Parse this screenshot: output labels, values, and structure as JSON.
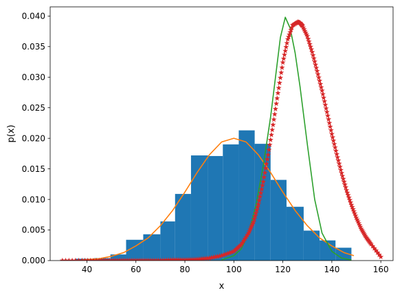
{
  "chart_data": {
    "type": "bar",
    "title": "",
    "xlabel": "x",
    "ylabel": "p(x)",
    "xlim": [
      25,
      165
    ],
    "ylim": [
      0,
      0.0415
    ],
    "x_ticks": [
      40,
      60,
      80,
      100,
      120,
      140,
      160
    ],
    "x_tick_labels": [
      "40",
      "60",
      "80",
      "100",
      "120",
      "140",
      "160"
    ],
    "y_ticks": [
      0,
      0.005,
      0.01,
      0.015,
      0.02,
      0.025,
      0.03,
      0.035,
      0.04
    ],
    "y_tick_labels": [
      "0.000",
      "0.005",
      "0.010",
      "0.015",
      "0.020",
      "0.025",
      "0.030",
      "0.035",
      "0.040"
    ],
    "grid": false,
    "histogram": {
      "color": "#1f77b4",
      "bin_edges": [
        29.5,
        35.5,
        43,
        49.6,
        56,
        63,
        70,
        76,
        82.5,
        89.5,
        95.5,
        102,
        108.5,
        115,
        121.5,
        128.5,
        135,
        141.5,
        148
      ],
      "values": [
        0.0001,
        0.0003,
        0.0004,
        0.001,
        0.0034,
        0.0043,
        0.0064,
        0.0109,
        0.0172,
        0.0171,
        0.019,
        0.0213,
        0.0191,
        0.0132,
        0.0088,
        0.0049,
        0.0033,
        0.0021
      ]
    },
    "series": [
      {
        "type": "line",
        "color": "#ff7f0e",
        "x": [
          37.9,
          45,
          50,
          55,
          60,
          65,
          70,
          75,
          80,
          85,
          90,
          95,
          100,
          105,
          110,
          115,
          120,
          125,
          130,
          135,
          140,
          145,
          149
        ],
        "y": [
          0.0001,
          0.0003,
          0.0007,
          0.0013,
          0.0024,
          0.0037,
          0.0057,
          0.0082,
          0.0112,
          0.0144,
          0.0173,
          0.0194,
          0.02,
          0.0194,
          0.0173,
          0.0144,
          0.0112,
          0.0082,
          0.0057,
          0.0037,
          0.0024,
          0.0013,
          0.0008
        ]
      },
      {
        "type": "line",
        "color": "#2ca02c",
        "x": [
          95,
          100,
          103,
          106,
          109,
          112,
          115,
          117,
          119,
          121,
          123,
          125,
          127,
          130,
          133,
          136,
          140,
          144,
          148
        ],
        "y": [
          0.0001,
          0.0008,
          0.0019,
          0.0045,
          0.009,
          0.0155,
          0.0235,
          0.03,
          0.0365,
          0.0398,
          0.038,
          0.034,
          0.0285,
          0.019,
          0.01,
          0.0045,
          0.0015,
          0.0004,
          0.0001
        ]
      },
      {
        "type": "scatter",
        "marker": "star",
        "color": "#d62728",
        "x": [
          30,
          38,
          45,
          50,
          55,
          60,
          65,
          70,
          75,
          80,
          85,
          90,
          95,
          100,
          103,
          106,
          108,
          110,
          112,
          114,
          116,
          118,
          120,
          122,
          124,
          126,
          127,
          128,
          130,
          132,
          134,
          136,
          138,
          140,
          142,
          144,
          146,
          148,
          150,
          152,
          154,
          156,
          160
        ],
        "y": [
          0.0,
          0.0,
          0.0,
          0.0,
          0.0,
          0.0,
          0.0,
          0.0,
          0.0001,
          0.0001,
          0.0002,
          0.0004,
          0.0008,
          0.0015,
          0.0026,
          0.0045,
          0.0063,
          0.0092,
          0.0129,
          0.0173,
          0.0222,
          0.0274,
          0.0324,
          0.0362,
          0.0385,
          0.039,
          0.0389,
          0.0384,
          0.0367,
          0.0341,
          0.031,
          0.0278,
          0.0243,
          0.0207,
          0.0174,
          0.0143,
          0.0115,
          0.0091,
          0.007,
          0.0052,
          0.0038,
          0.0027,
          0.0006
        ]
      }
    ]
  }
}
